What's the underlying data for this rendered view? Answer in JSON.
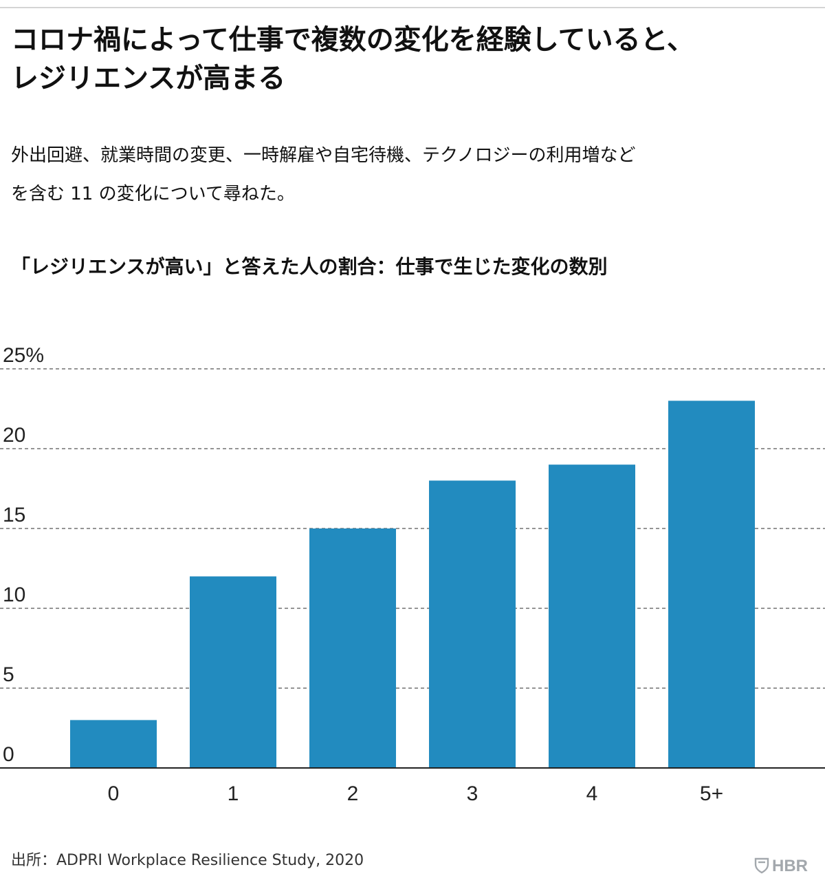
{
  "title_lines": [
    "コロナ禍によって仕事で複数の変化を経験していると、",
    "レジリエンスが高まる"
  ],
  "subtitle_lines": [
    "外出回避、就業時間の変更、一時解雇や自宅待機、テクノロジーの利用増など",
    "を含む 11 の変化について尋ねた。"
  ],
  "chart_caption": "「レジリエンスが高い」と答えた人の割合：仕事で生じた変化の数別",
  "source": "出所：ADPRI Workplace Resilience Study, 2020",
  "logo_text": "HBR",
  "colors": {
    "bar": "#228bbf",
    "grid": "#555555",
    "baseline": "#222222",
    "logo": "#a3a8ad"
  },
  "chart_data": {
    "type": "bar",
    "title": "「レジリエンスが高い」と答えた人の割合：仕事で生じた変化の数別",
    "categories": [
      "0",
      "1",
      "2",
      "3",
      "4",
      "5+"
    ],
    "values": [
      3,
      12,
      15,
      18,
      19,
      23
    ],
    "unit": "%",
    "xlabel": "",
    "ylabel": "",
    "ylim": [
      0,
      25
    ],
    "yticks": [
      0,
      5,
      10,
      15,
      20,
      25
    ],
    "ytick_labels": [
      "0",
      "5",
      "10",
      "15",
      "20",
      "25%"
    ],
    "grid": "dashed horizontal",
    "legend": "none"
  }
}
